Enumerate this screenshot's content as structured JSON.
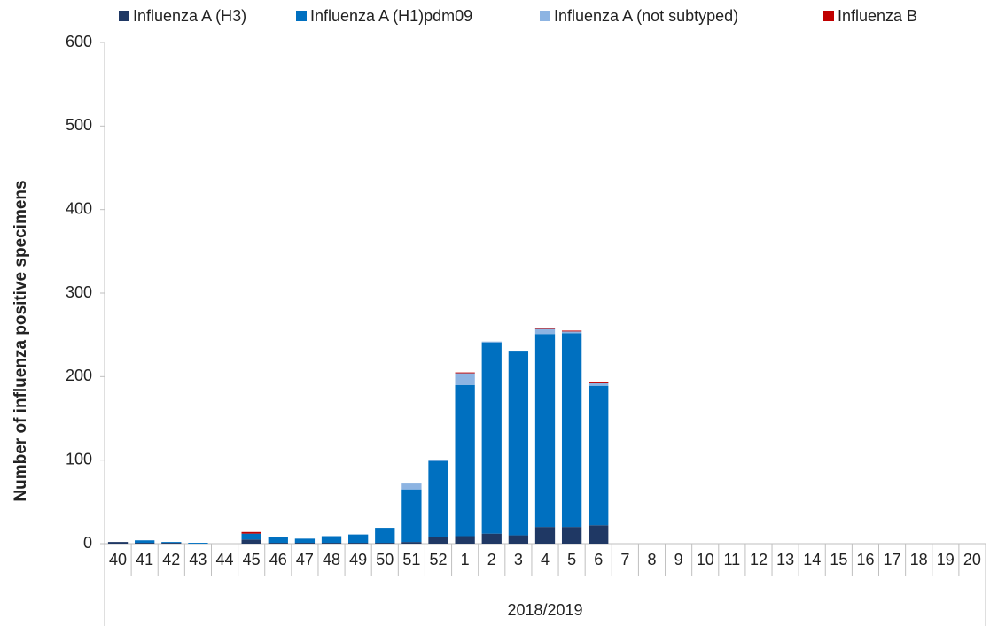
{
  "chart_data": {
    "type": "stacked_bar",
    "ylabel": "Number of influenza positive specimens",
    "xlabel": "2018/2019",
    "categories": [
      "40",
      "41",
      "42",
      "43",
      "44",
      "45",
      "46",
      "47",
      "48",
      "49",
      "50",
      "51",
      "52",
      "1",
      "2",
      "3",
      "4",
      "5",
      "6",
      "7",
      "8",
      "9",
      "10",
      "11",
      "12",
      "13",
      "14",
      "15",
      "16",
      "17",
      "18",
      "19",
      "20"
    ],
    "series": [
      {
        "name": "Influenza A (H3)",
        "color": "#1f3864",
        "values": [
          2,
          1,
          1,
          0,
          0,
          5,
          1,
          1,
          1,
          1,
          1,
          2,
          8,
          9,
          12,
          10,
          20,
          20,
          22,
          null,
          null,
          null,
          null,
          null,
          null,
          null,
          null,
          null,
          null,
          null,
          null,
          null,
          null
        ]
      },
      {
        "name": "Influenza A (H1)pdm09",
        "color": "#0070c0",
        "values": [
          0,
          3,
          1,
          1,
          0,
          7,
          7,
          5,
          8,
          10,
          18,
          63,
          91,
          181,
          229,
          221,
          231,
          232,
          167,
          null,
          null,
          null,
          null,
          null,
          null,
          null,
          null,
          null,
          null,
          null,
          null,
          null,
          null
        ]
      },
      {
        "name": "Influenza A (not subtyped)",
        "color": "#8db4e2",
        "values": [
          0,
          0,
          0,
          0,
          0,
          0,
          0,
          0,
          0,
          0,
          0,
          7,
          1,
          14,
          1,
          0,
          6,
          2,
          4,
          null,
          null,
          null,
          null,
          null,
          null,
          null,
          null,
          null,
          null,
          null,
          null,
          null,
          null
        ]
      },
      {
        "name": "Influenza B",
        "color": "#c00000",
        "values": [
          0,
          0,
          0,
          0,
          0,
          2,
          0,
          0,
          0,
          0,
          0,
          0,
          0,
          1,
          0,
          0,
          1,
          1,
          1,
          null,
          null,
          null,
          null,
          null,
          null,
          null,
          null,
          null,
          null,
          null,
          null,
          null,
          null
        ]
      }
    ],
    "ylim": [
      0,
      600
    ],
    "yticks": [
      0,
      100,
      200,
      300,
      400,
      500,
      600
    ],
    "grid": false
  }
}
